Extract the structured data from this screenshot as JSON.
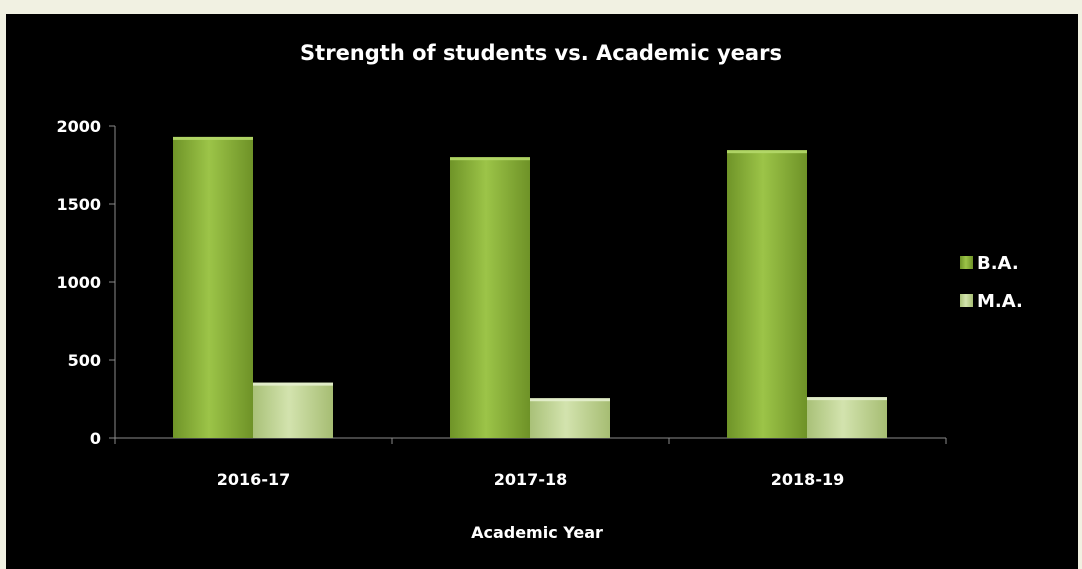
{
  "chart_data": {
    "type": "bar",
    "title": "Strength of students vs. Academic years",
    "xlabel": "Academic Year",
    "ylabel": "",
    "categories": [
      "2016-17",
      "2017-18",
      "2018-19"
    ],
    "series": [
      {
        "name": "B.A.",
        "values": [
          1930,
          1800,
          1845
        ],
        "color": "#8db33c"
      },
      {
        "name": "M.A.",
        "values": [
          355,
          255,
          262
        ],
        "color": "#c5d99a"
      }
    ],
    "ylim": [
      0,
      2000
    ],
    "yticks": [
      0,
      500,
      1000,
      1500,
      2000
    ],
    "grid": false,
    "legend": "right"
  }
}
